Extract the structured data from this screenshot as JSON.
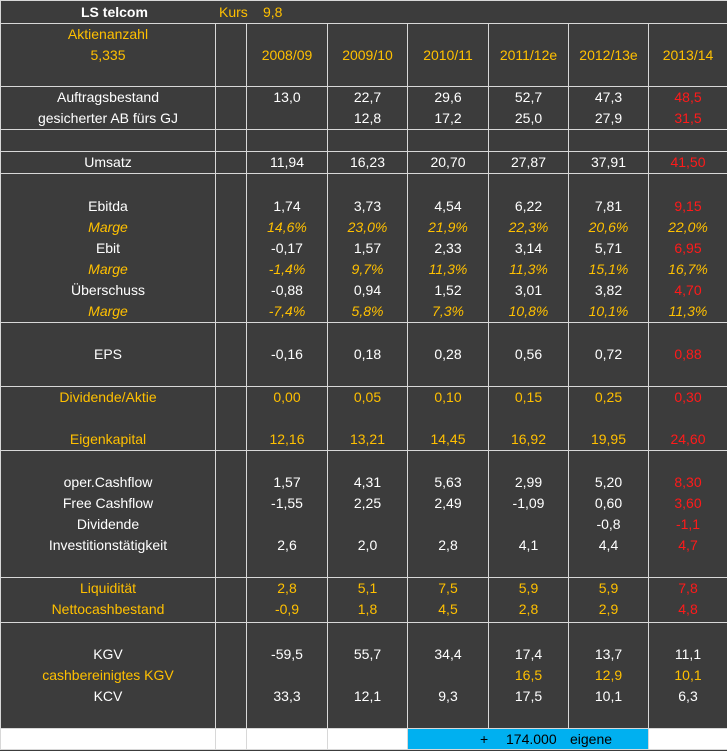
{
  "header": {
    "company": "LS telcom",
    "kurs_label": "Kurs",
    "kurs_value": "9,8",
    "aktienanzahl_label": "Aktienanzahl",
    "aktienanzahl_value": "5,335"
  },
  "years": [
    "2008/09",
    "2009/10",
    "2010/11",
    "2011/12e",
    "2012/13e",
    "2013/14"
  ],
  "rows": {
    "auftragsbestand": {
      "label": "Auftragsbestand",
      "values": [
        "13,0",
        "22,7",
        "29,6",
        "52,7",
        "47,3",
        "48,5"
      ]
    },
    "gesicherter_ab": {
      "label": "gesicherter AB fürs GJ",
      "values": [
        "",
        "12,8",
        "17,2",
        "25,0",
        "27,9",
        "31,5"
      ]
    },
    "umsatz": {
      "label": "Umsatz",
      "values": [
        "11,94",
        "16,23",
        "20,70",
        "27,87",
        "37,91",
        "41,50"
      ]
    },
    "ebitda": {
      "label": "Ebitda",
      "values": [
        "1,74",
        "3,73",
        "4,54",
        "6,22",
        "7,81",
        "9,15"
      ]
    },
    "marge_ebitda": {
      "label": "Marge",
      "values": [
        "14,6%",
        "23,0%",
        "21,9%",
        "22,3%",
        "20,6%",
        "22,0%"
      ]
    },
    "ebit": {
      "label": "Ebit",
      "values": [
        "-0,17",
        "1,57",
        "2,33",
        "3,14",
        "5,71",
        "6,95"
      ]
    },
    "marge_ebit": {
      "label": "Marge",
      "values": [
        "-1,4%",
        "9,7%",
        "11,3%",
        "11,3%",
        "15,1%",
        "16,7%"
      ]
    },
    "ueberschuss": {
      "label": "Überschuss",
      "values": [
        "-0,88",
        "0,94",
        "1,52",
        "3,01",
        "3,82",
        "4,70"
      ]
    },
    "marge_ueberschuss": {
      "label": "Marge",
      "values": [
        "-7,4%",
        "5,8%",
        "7,3%",
        "10,8%",
        "10,1%",
        "11,3%"
      ]
    },
    "eps": {
      "label": "EPS",
      "values": [
        "-0,16",
        "0,18",
        "0,28",
        "0,56",
        "0,72",
        "0,88"
      ]
    },
    "dividende_aktie": {
      "label": "Dividende/Aktie",
      "values": [
        "0,00",
        "0,05",
        "0,10",
        "0,15",
        "0,25",
        "0,30"
      ]
    },
    "eigenkapital": {
      "label": "Eigenkapital",
      "values": [
        "12,16",
        "13,21",
        "14,45",
        "16,92",
        "19,95",
        "24,60"
      ]
    },
    "oper_cashflow": {
      "label": "oper.Cashflow",
      "values": [
        "1,57",
        "4,31",
        "5,63",
        "2,99",
        "5,20",
        "8,30"
      ]
    },
    "free_cashflow": {
      "label": "Free Cashflow",
      "values": [
        "-1,55",
        "2,25",
        "2,49",
        "-1,09",
        "0,60",
        "3,60"
      ]
    },
    "dividende": {
      "label": "Dividende",
      "values": [
        "",
        "",
        "",
        "",
        "-0,8",
        "-1,1"
      ]
    },
    "investition": {
      "label": "Investitionstätigkeit",
      "values": [
        "2,6",
        "2,0",
        "2,8",
        "4,1",
        "4,4",
        "4,7"
      ]
    },
    "liquiditaet": {
      "label": "Liquidität",
      "values": [
        "2,8",
        "5,1",
        "7,5",
        "5,9",
        "5,9",
        "7,8"
      ]
    },
    "nettocash": {
      "label": "Nettocashbestand",
      "values": [
        "-0,9",
        "1,8",
        "4,5",
        "2,8",
        "2,9",
        "4,8"
      ]
    },
    "kgv": {
      "label": "KGV",
      "values": [
        "-59,5",
        "55,7",
        "34,4",
        "17,4",
        "13,7",
        "11,1"
      ]
    },
    "cash_kgv": {
      "label": "cashbereinigtes KGV",
      "values": [
        "",
        "",
        "",
        "16,5",
        "12,9",
        "10,1"
      ]
    },
    "kcv": {
      "label": "KCV",
      "values": [
        "33,3",
        "12,1",
        "9,3",
        "17,5",
        "10,1",
        "6,3"
      ]
    }
  },
  "footer": {
    "plus": "+",
    "count": "174.000",
    "label": "eigene Aktien"
  },
  "colors": {
    "background": "#3c3c3c",
    "text": "#ffffff",
    "highlight": "#ffc000",
    "forecast": "#ff1a1a",
    "footer_fill": "#00b0f0"
  }
}
